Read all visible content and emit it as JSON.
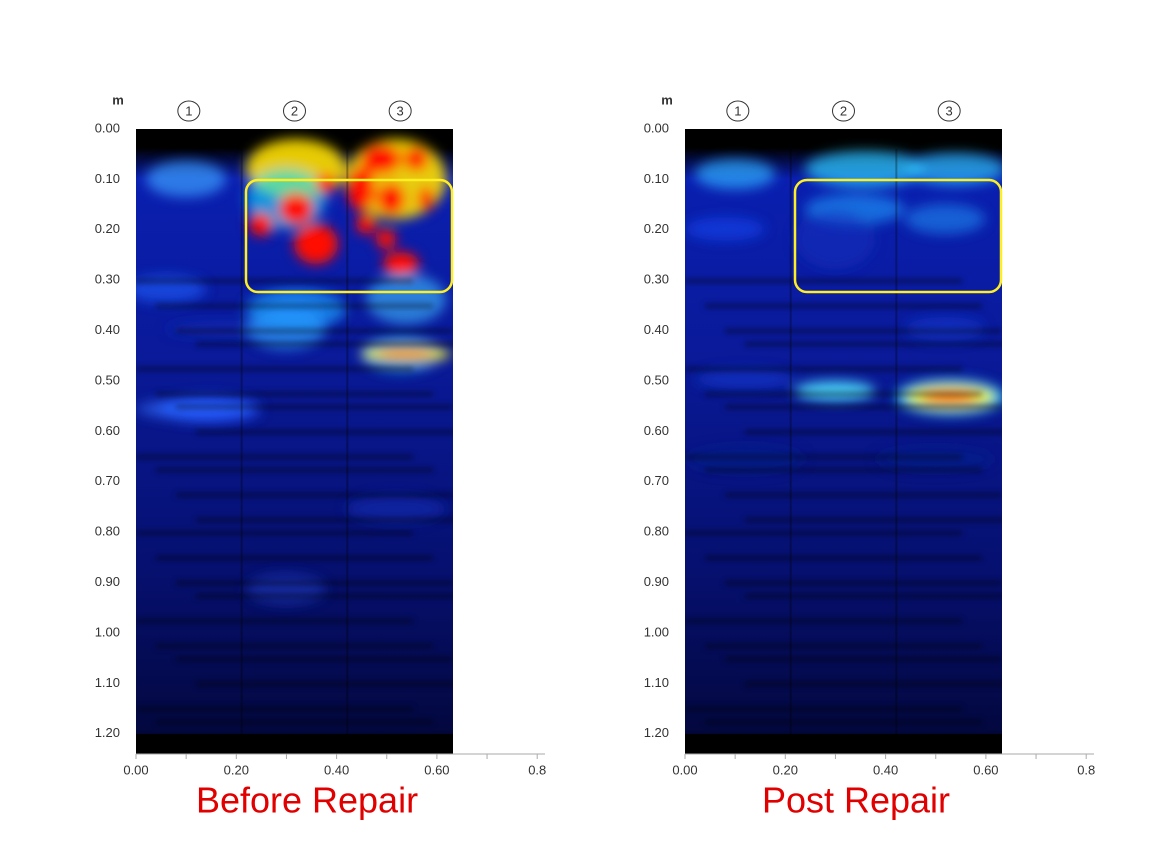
{
  "panels": [
    {
      "caption": "Before Repair",
      "unit": "m",
      "columns": [
        "1",
        "2",
        "3"
      ],
      "yticks": [
        "0.00",
        "0.10",
        "0.20",
        "0.30",
        "0.40",
        "0.50",
        "0.60",
        "0.70",
        "0.80",
        "0.90",
        "1.00",
        "1.10",
        "1.20"
      ],
      "xticks": [
        "0.00",
        "0.20",
        "0.40",
        "0.60",
        "0.8"
      ]
    },
    {
      "caption": "Post Repair",
      "unit": "m",
      "columns": [
        "1",
        "2",
        "3"
      ],
      "yticks": [
        "0.00",
        "0.10",
        "0.20",
        "0.30",
        "0.40",
        "0.50",
        "0.60",
        "0.70",
        "0.80",
        "0.90",
        "1.00",
        "1.10",
        "1.20"
      ],
      "xticks": [
        "0.00",
        "0.20",
        "0.40",
        "0.60",
        "0.8"
      ]
    }
  ]
}
